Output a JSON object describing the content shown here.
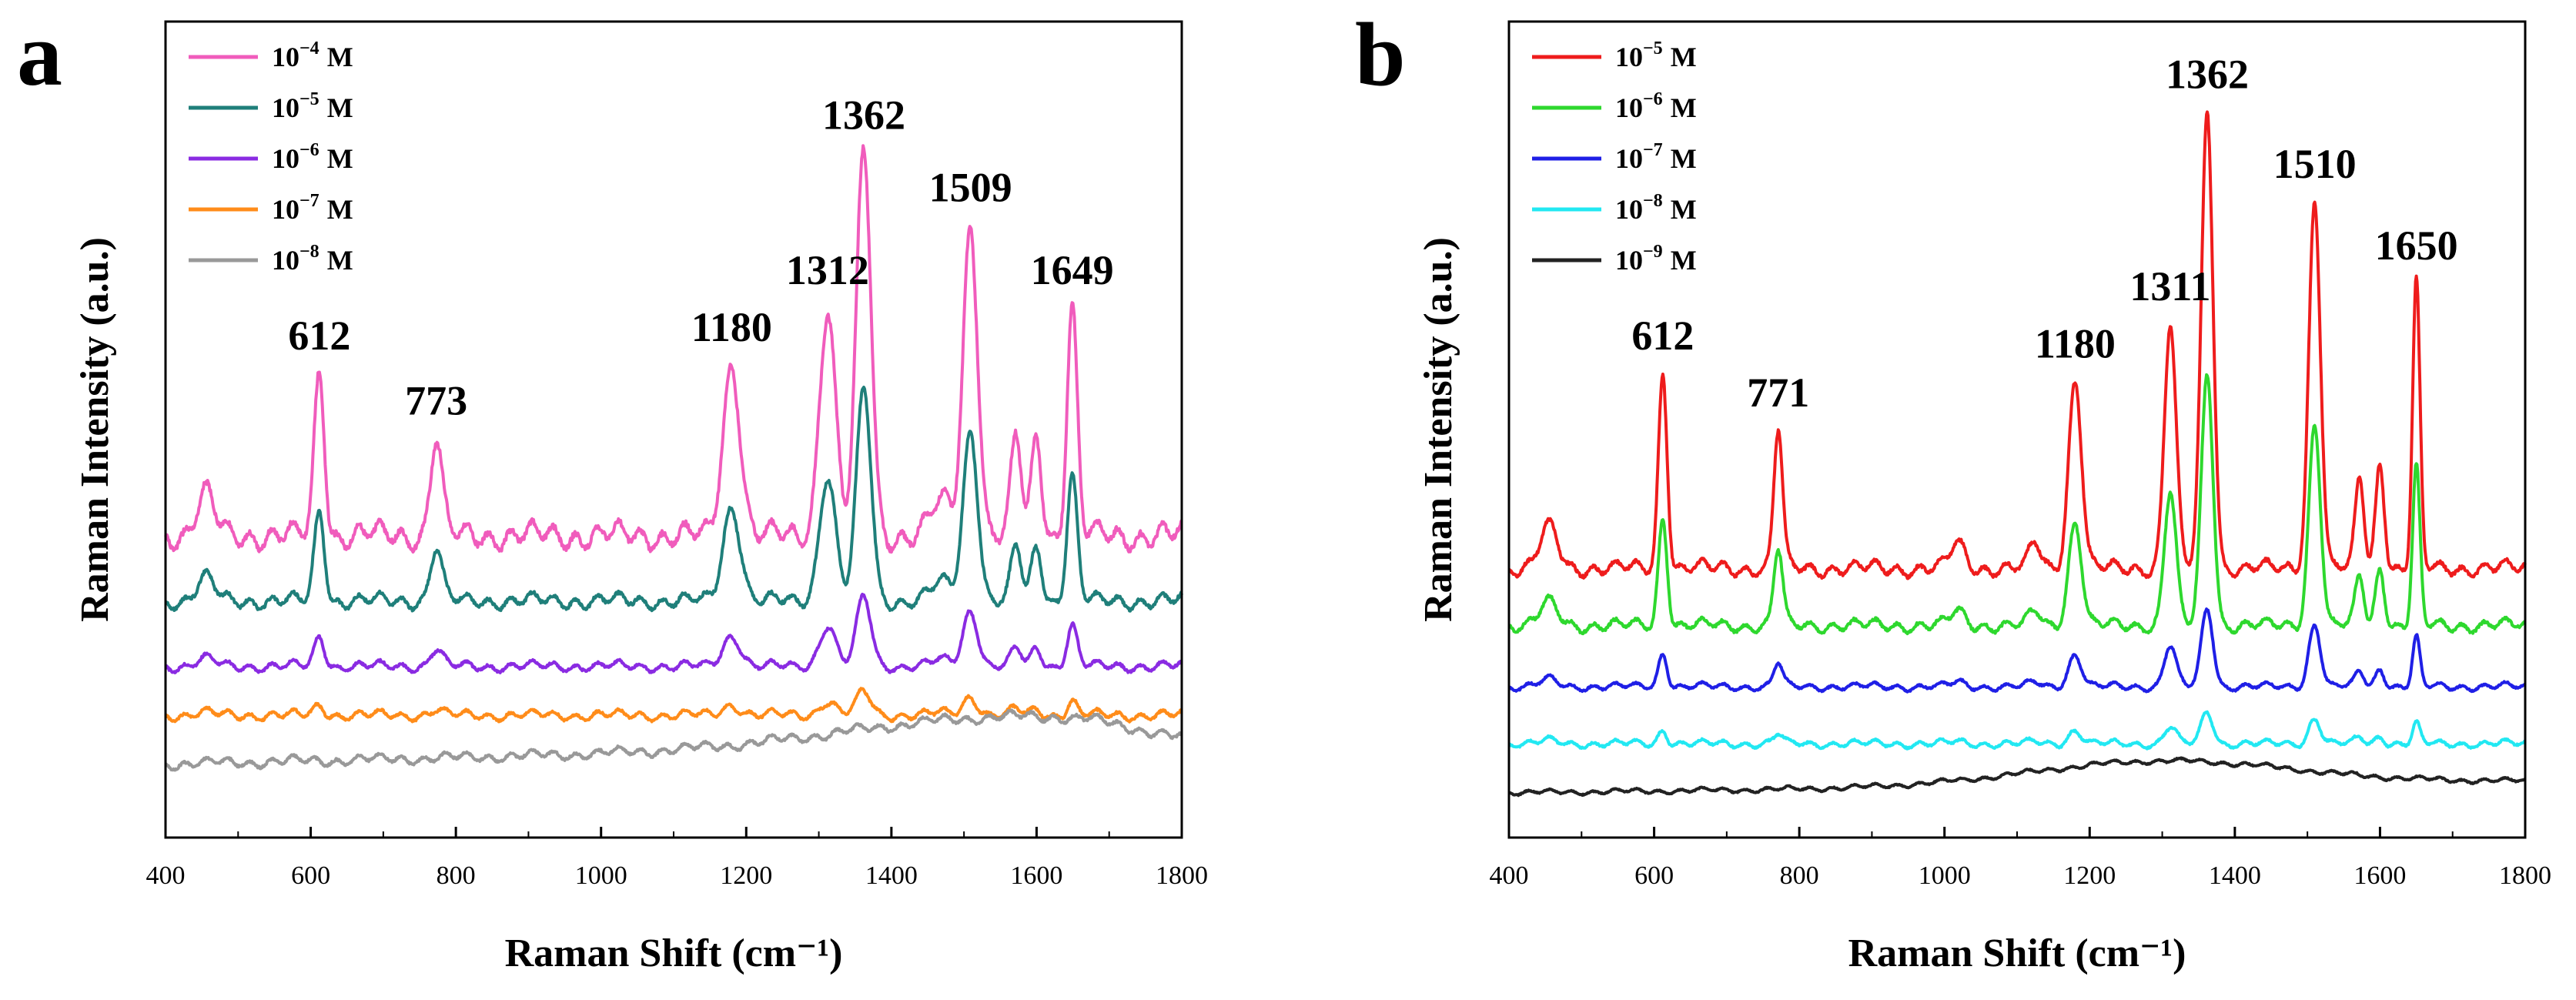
{
  "chart_data": [
    {
      "type": "line",
      "panel_label": "a",
      "xlabel": "Raman Shift (cm⁻¹)",
      "ylabel": "Raman Intensity (a.u.)",
      "xlim": [
        400,
        1800
      ],
      "x_ticks": [
        "400",
        "600",
        "800",
        "1000",
        "1200",
        "1400",
        "1600",
        "1800"
      ],
      "y_ticks": [],
      "legend_position": "top-left",
      "series": [
        {
          "name": "10^-4 M",
          "base": "10",
          "exp": "−4",
          "unit": "M",
          "color": "#f05cbc",
          "baseline": 0.63,
          "scale": 1.0,
          "background": "flat",
          "noise": 0.01
        },
        {
          "name": "10^-5 M",
          "base": "10",
          "exp": "−5",
          "unit": "M",
          "color": "#1f7f7a",
          "baseline": 0.71,
          "scale": 0.55,
          "background": "flat",
          "noise": 0.006
        },
        {
          "name": "10^-6 M",
          "base": "10",
          "exp": "−6",
          "unit": "M",
          "color": "#8a2be2",
          "baseline": 0.79,
          "scale": 0.18,
          "background": "flat",
          "noise": 0.004
        },
        {
          "name": "10^-7 M",
          "base": "10",
          "exp": "−7",
          "unit": "M",
          "color": "#ff8c1a",
          "baseline": 0.85,
          "scale": 0.06,
          "background": "flat",
          "noise": 0.004
        },
        {
          "name": "10^-8 M",
          "base": "10",
          "exp": "−8",
          "unit": "M",
          "color": "#999999",
          "baseline": 0.91,
          "scale": 0.0,
          "background": "broad",
          "noise": 0.004
        }
      ],
      "peaks": [
        {
          "x": 612,
          "label": "612",
          "height": 0.2,
          "width": 7
        },
        {
          "x": 773,
          "label": "773",
          "height": 0.12,
          "width": 8
        },
        {
          "x": 1180,
          "label": "1180",
          "height": 0.21,
          "width": 12
        },
        {
          "x": 1312,
          "label": "1312",
          "height": 0.28,
          "width": 11
        },
        {
          "x": 1362,
          "label": "1362",
          "height": 0.47,
          "width": 10
        },
        {
          "x": 1509,
          "label": "1509",
          "height": 0.38,
          "width": 10
        },
        {
          "x": 1649,
          "label": "1649",
          "height": 0.28,
          "width": 7
        }
      ],
      "minor_peaks": [
        {
          "x": 455,
          "height": 0.05,
          "width": 12
        },
        {
          "x": 1572,
          "height": 0.12,
          "width": 7
        },
        {
          "x": 1600,
          "height": 0.12,
          "width": 7
        },
        {
          "x": 1470,
          "height": 0.04,
          "width": 15
        }
      ]
    },
    {
      "type": "line",
      "panel_label": "b",
      "xlabel": "Raman Shift (cm⁻¹)",
      "ylabel": "Raman Intensity (a.u.)",
      "xlim": [
        400,
        1800
      ],
      "x_ticks": [
        "400",
        "600",
        "800",
        "1000",
        "1200",
        "1400",
        "1600",
        "1800"
      ],
      "y_ticks": [],
      "legend_position": "top-left",
      "series": [
        {
          "name": "10^-5 M",
          "base": "10",
          "exp": "−5",
          "unit": "M",
          "color": "#ee1c1c",
          "baseline": 0.67,
          "scale": 1.0,
          "background": "flat",
          "noise": 0.006
        },
        {
          "name": "10^-6 M",
          "base": "10",
          "exp": "−6",
          "unit": "M",
          "color": "#2ed82e",
          "baseline": 0.74,
          "scale": 0.55,
          "background": "flat",
          "noise": 0.005
        },
        {
          "name": "10^-7 M",
          "base": "10",
          "exp": "−7",
          "unit": "M",
          "color": "#1f1fe6",
          "baseline": 0.815,
          "scale": 0.17,
          "background": "flat",
          "noise": 0.003
        },
        {
          "name": "10^-8 M",
          "base": "10",
          "exp": "−8",
          "unit": "M",
          "color": "#22e8f2",
          "baseline": 0.885,
          "scale": 0.07,
          "background": "flat",
          "noise": 0.003
        },
        {
          "name": "10^-9 M",
          "base": "10",
          "exp": "−9",
          "unit": "M",
          "color": "#222222",
          "baseline": 0.945,
          "scale": 0.0,
          "background": "hump",
          "noise": 0.002
        }
      ],
      "peaks": [
        {
          "x": 612,
          "label": "612",
          "height": 0.24,
          "width": 6
        },
        {
          "x": 771,
          "label": "771",
          "height": 0.17,
          "width": 6
        },
        {
          "x": 1180,
          "label": "1180",
          "height": 0.23,
          "width": 9
        },
        {
          "x": 1311,
          "label": "1311",
          "height": 0.3,
          "width": 8
        },
        {
          "x": 1362,
          "label": "1362",
          "height": 0.56,
          "width": 8
        },
        {
          "x": 1510,
          "label": "1510",
          "height": 0.45,
          "width": 8
        },
        {
          "x": 1650,
          "label": "1650",
          "height": 0.35,
          "width": 5
        }
      ],
      "minor_peaks": [
        {
          "x": 455,
          "height": 0.05,
          "width": 12
        },
        {
          "x": 1572,
          "height": 0.11,
          "width": 6
        },
        {
          "x": 1600,
          "height": 0.13,
          "width": 6
        },
        {
          "x": 1018,
          "height": 0.03,
          "width": 10
        },
        {
          "x": 1125,
          "height": 0.03,
          "width": 8
        }
      ]
    }
  ]
}
